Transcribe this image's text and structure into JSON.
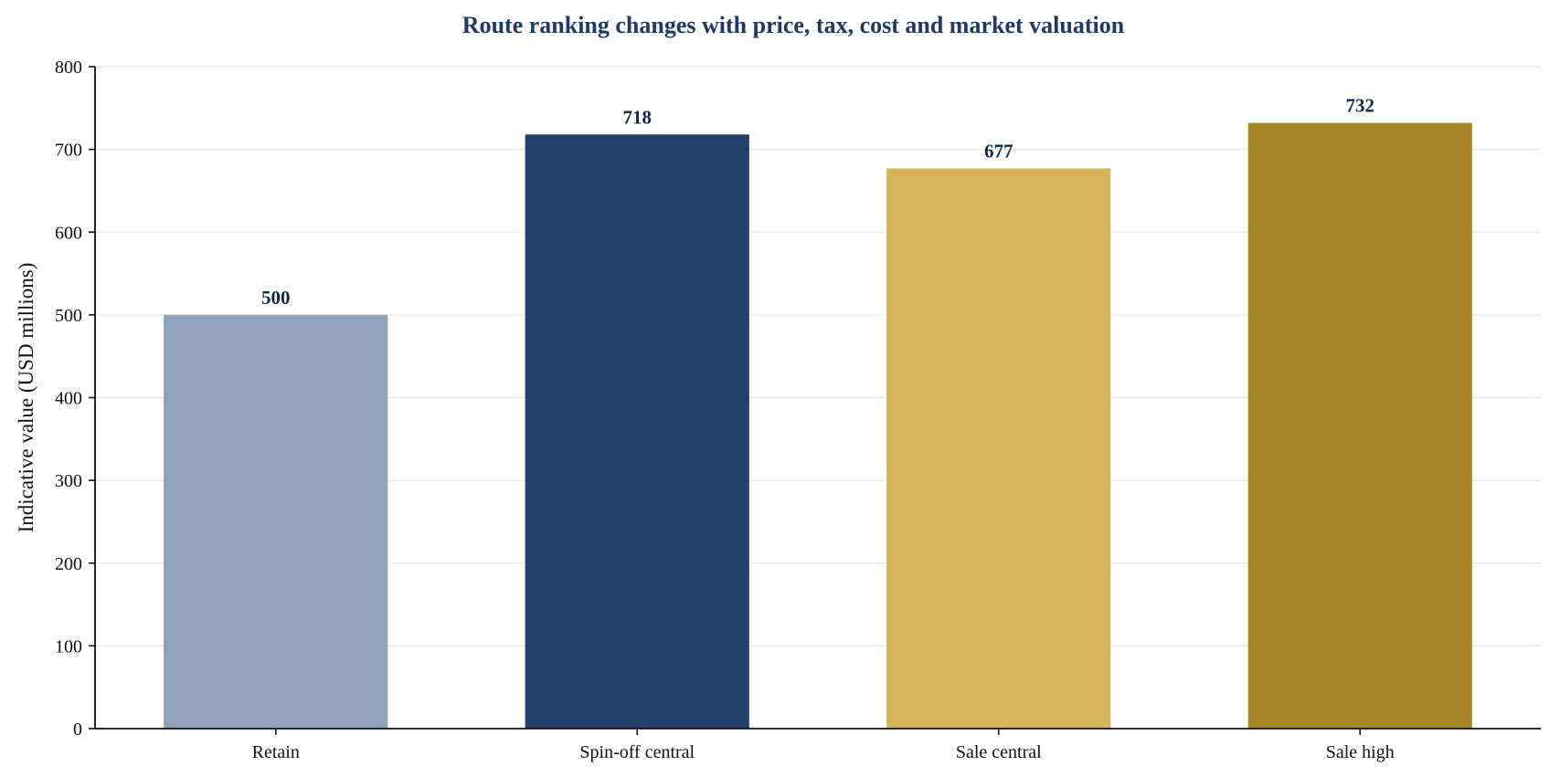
{
  "chart_data": {
    "type": "bar",
    "title": "Route ranking changes with price, tax, cost and market valuation",
    "xlabel": "",
    "ylabel": "Indicative value (USD millions)",
    "categories": [
      "Retain",
      "Spin-off central",
      "Sale central",
      "Sale high"
    ],
    "values": [
      500,
      718,
      677,
      732
    ],
    "value_labels": [
      "500",
      "718",
      "677",
      "732"
    ],
    "bar_colors": [
      "#8ea3b9",
      "#213f69",
      "#d5b55c",
      "#a8872b"
    ],
    "ylim": [
      0,
      800
    ],
    "yticks": [
      0,
      100,
      200,
      300,
      400,
      500,
      600,
      700,
      800
    ],
    "grid": "horizontal",
    "legend": "none"
  }
}
